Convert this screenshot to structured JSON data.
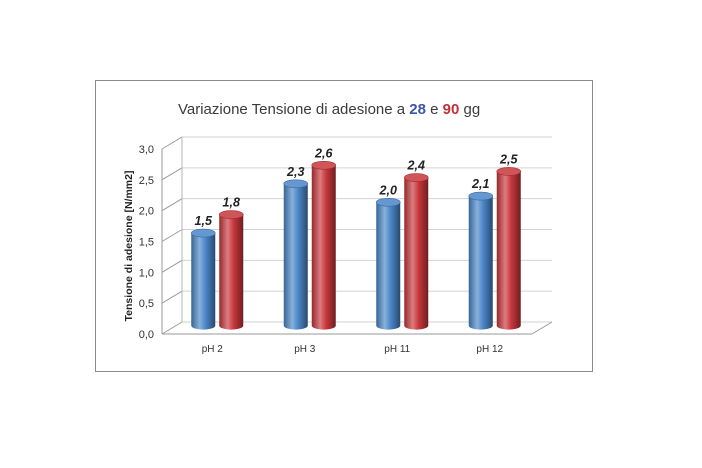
{
  "chart_data": {
    "type": "bar",
    "title": {
      "prefix": "Variazione Tensione di adesione a ",
      "highlight1": "28",
      "middle": " e ",
      "highlight2": "90",
      "suffix": " gg"
    },
    "ylabel": "Tensione di adesione [N/mm2]",
    "xlabel": "",
    "ylim": [
      0,
      3
    ],
    "yticks": [
      "0,0",
      "0,5",
      "1,0",
      "1,5",
      "2,0",
      "2,5",
      "3,0"
    ],
    "categories": [
      "pH 2",
      "pH 3",
      "pH 11",
      "pH 12"
    ],
    "series": [
      {
        "color": "#4a86c8",
        "values": [
          1.5,
          2.3,
          2.0,
          2.1
        ],
        "labels": [
          "1,5",
          "2,3",
          "2,0",
          "2,1"
        ]
      },
      {
        "color": "#c8373c",
        "values": [
          1.8,
          2.6,
          2.4,
          2.5
        ],
        "labels": [
          "1,8",
          "2,6",
          "2,4",
          "2,5"
        ]
      }
    ],
    "grid": true,
    "legend": "none"
  }
}
